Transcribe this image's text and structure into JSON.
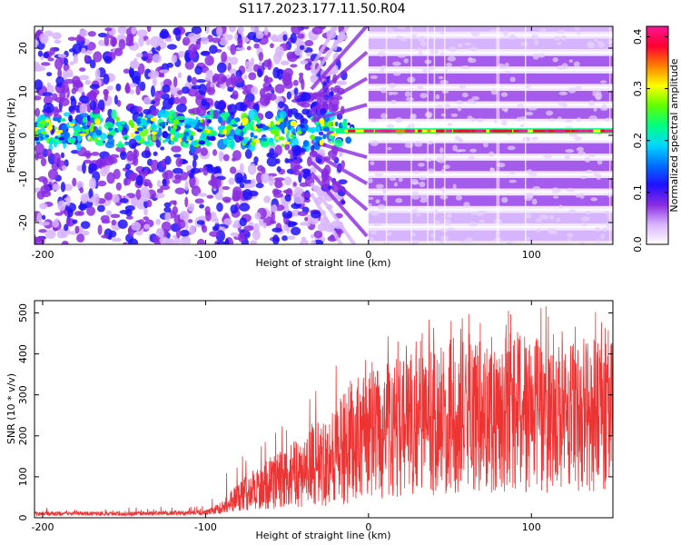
{
  "figure": {
    "title": "S117.2023.177.11.50.R04"
  },
  "chart_data": [
    {
      "type": "heatmap",
      "xlabel": "Height of straight line (km)",
      "ylabel": "Frequency (Hz)",
      "xlim": [
        -205,
        150
      ],
      "ylim": [
        -25,
        25
      ],
      "x_ticks": [
        -200,
        -100,
        0,
        100
      ],
      "y_ticks": [
        -20,
        -10,
        0,
        10,
        20
      ],
      "colorbar": {
        "label": "Normalized spectral amplitude",
        "range": [
          0.0,
          0.42
        ],
        "ticks": [
          0.0,
          0.1,
          0.2,
          0.3,
          0.4
        ],
        "tick_labels": [
          "0.0",
          "0.1",
          "0.2",
          "0.3",
          "0.4"
        ],
        "colormap": [
          "#ffffff",
          "#d8b4fe",
          "#8a2be2",
          "#2010ff",
          "#0070ff",
          "#00d8ff",
          "#00ff80",
          "#60ff00",
          "#ffff00",
          "#ff8000",
          "#ff0030",
          "#ff1493"
        ]
      },
      "features": {
        "carrier_frequency_hz": 1,
        "harmonic_spacing_hz": 4,
        "transition_height_km": -20
      }
    },
    {
      "type": "line",
      "color": "#ee3333",
      "xlabel": "Height of straight line (km)",
      "ylabel": "SNR (10 * v/v)",
      "xlim": [
        -205,
        150
      ],
      "ylim": [
        0,
        530
      ],
      "x_ticks": [
        -200,
        -100,
        0,
        100
      ],
      "y_ticks": [
        0,
        100,
        200,
        300,
        400,
        500
      ],
      "series_profile": {
        "x": [
          -205,
          -150,
          -100,
          -90,
          -80,
          -60,
          -40,
          -20,
          -10,
          0,
          10,
          20,
          40,
          60,
          80,
          100,
          120,
          150
        ],
        "lower": [
          5,
          5,
          6,
          10,
          15,
          20,
          25,
          30,
          35,
          40,
          45,
          50,
          55,
          58,
          60,
          60,
          62,
          62
        ],
        "upper": [
          15,
          15,
          18,
          40,
          90,
          150,
          200,
          280,
          330,
          360,
          380,
          400,
          420,
          430,
          440,
          440,
          430,
          440
        ],
        "peak": [
          25,
          25,
          30,
          130,
          160,
          200,
          280,
          380,
          400,
          430,
          450,
          470,
          490,
          500,
          510,
          530,
          510,
          500
        ]
      }
    }
  ]
}
